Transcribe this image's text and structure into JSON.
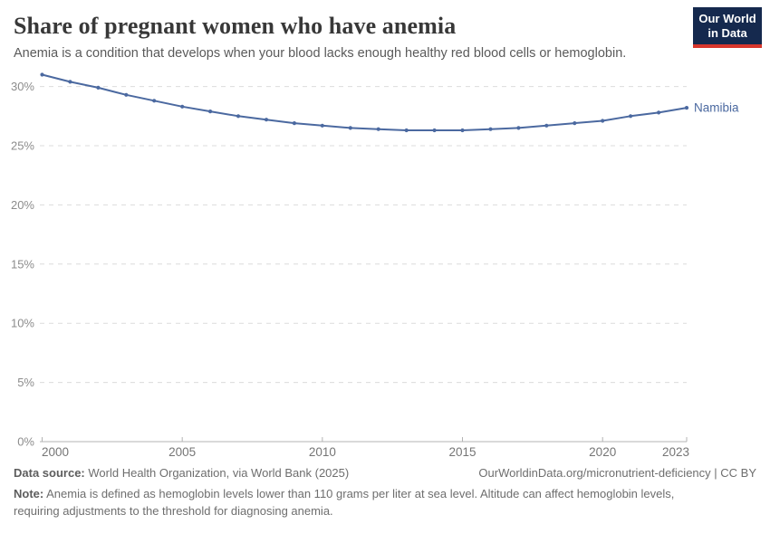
{
  "header": {
    "title": "Share of pregnant women who have anemia",
    "subtitle": "Anemia is a condition that develops when your blood lacks enough healthy red blood cells or hemoglobin.",
    "logo": {
      "line1": "Our World",
      "line2": "in Data"
    }
  },
  "chart_data": {
    "type": "line",
    "title": "Share of pregnant women who have anemia",
    "x": [
      2000,
      2001,
      2002,
      2003,
      2004,
      2005,
      2006,
      2007,
      2008,
      2009,
      2010,
      2011,
      2012,
      2013,
      2014,
      2015,
      2016,
      2017,
      2018,
      2019,
      2020,
      2021,
      2022,
      2023
    ],
    "series": [
      {
        "name": "Namibia",
        "values": [
          31.0,
          30.4,
          29.9,
          29.3,
          28.8,
          28.3,
          27.9,
          27.5,
          27.2,
          26.9,
          26.7,
          26.5,
          26.4,
          26.3,
          26.3,
          26.3,
          26.4,
          26.5,
          26.7,
          26.9,
          27.1,
          27.5,
          27.8,
          28.2
        ]
      }
    ],
    "xlabel": "",
    "ylabel": "",
    "xlim": [
      2000,
      2023
    ],
    "ylim": [
      0,
      31.5
    ],
    "x_ticks": [
      2000,
      2005,
      2010,
      2015,
      2020,
      2023
    ],
    "y_ticks": [
      0,
      5,
      10,
      15,
      20,
      25,
      30
    ],
    "y_tick_suffix": "%",
    "grid": "horizontal-dashed",
    "legend_position": "inline-end-label",
    "markers": true
  },
  "colors": {
    "line": "#4b69a0",
    "grid": "#dcdcdc",
    "axis": "#b3b3b3",
    "y_tick_text": "#8c8c8c",
    "x_tick_text": "#757575"
  },
  "footer": {
    "source_label": "Data source:",
    "source_text": "World Health Organization, via World Bank (2025)",
    "link_text": "OurWorldinData.org/micronutrient-deficiency | CC BY",
    "note_label": "Note:",
    "note_text": "Anemia is defined as hemoglobin levels lower than 110 grams per liter at sea level. Altitude can affect hemoglobin levels, requiring adjustments to the threshold for diagnosing anemia."
  }
}
